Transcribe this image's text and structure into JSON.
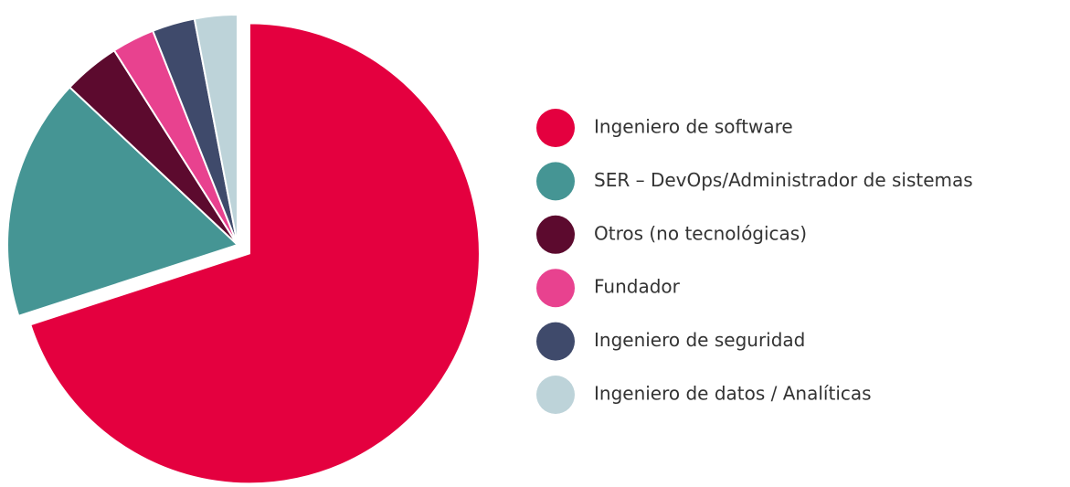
{
  "chart_data": {
    "type": "pie",
    "categories": [
      "Ingeniero de software",
      "SER – DevOps/Administrador de sistemas",
      "Otros (no tecnológicas)",
      "Fundador",
      "Ingeniero de seguridad",
      "Ingeniero de datos / Analíticas"
    ],
    "values": [
      70,
      17,
      4,
      3,
      3,
      3
    ],
    "colors": [
      "#e4003f",
      "#459594",
      "#5c0a2e",
      "#e8428f",
      "#3f4a6b",
      "#bdd3d9"
    ],
    "explode": [
      true,
      false,
      false,
      false,
      false,
      false
    ],
    "legend": "right"
  }
}
